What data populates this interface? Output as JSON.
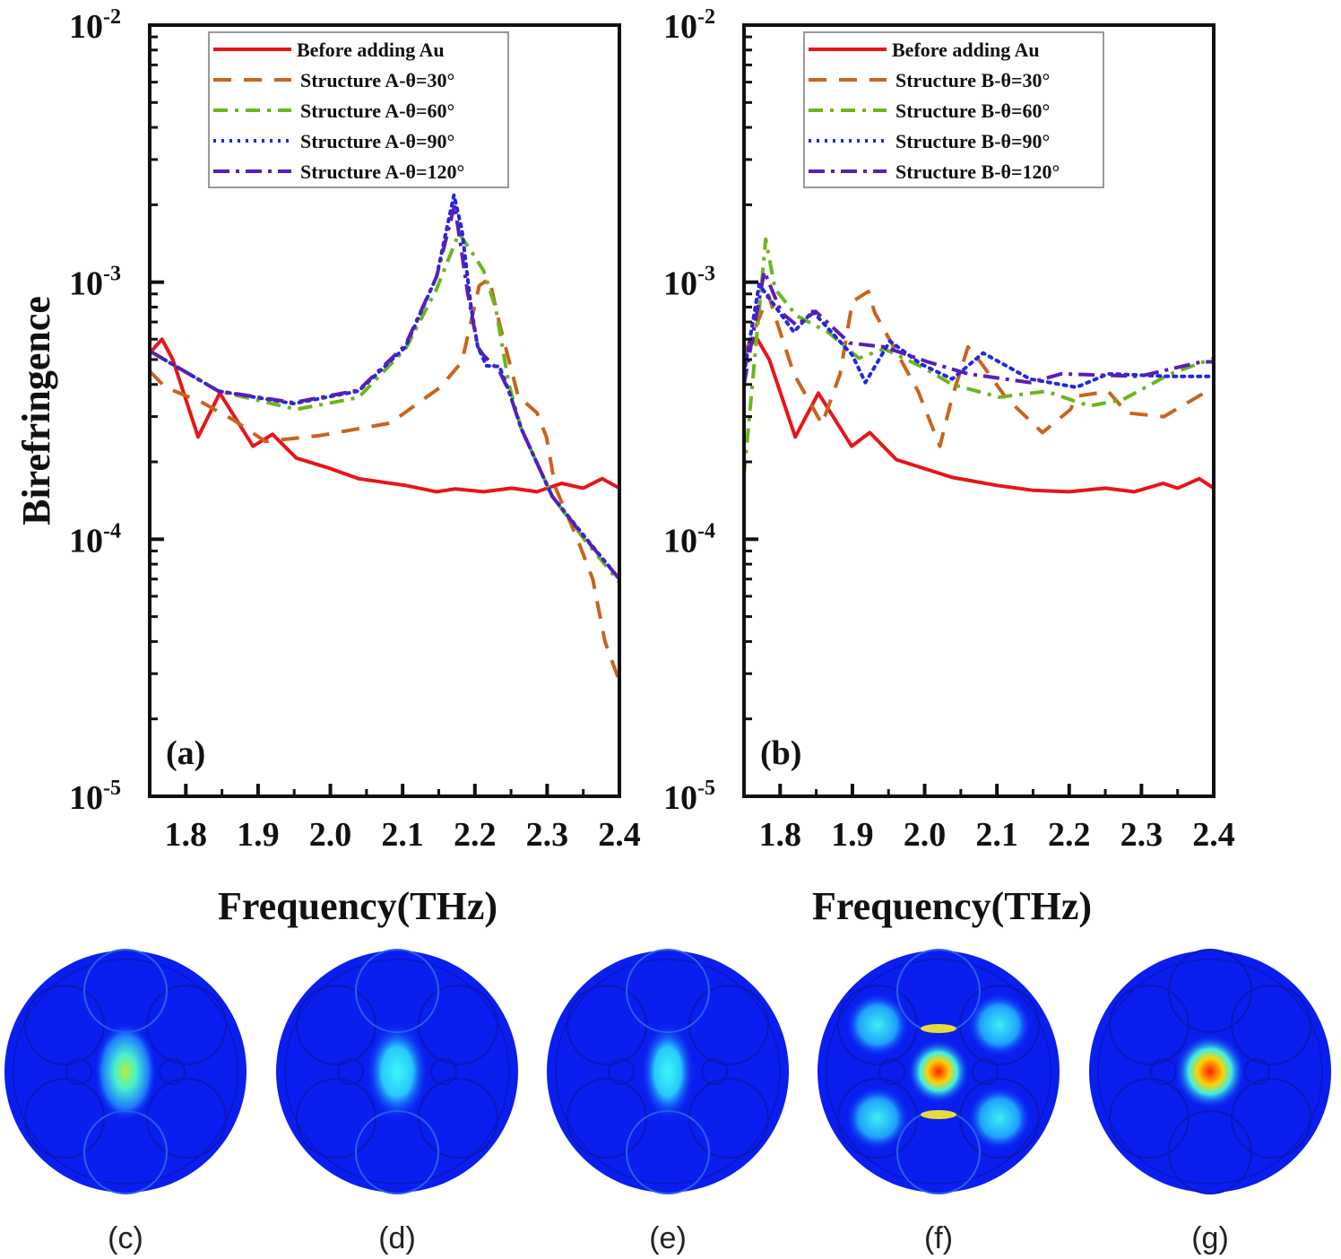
{
  "colors": {
    "before": "#e8141a",
    "s30": "#c8641e",
    "s60": "#6cb61e",
    "s90": "#1e28e6",
    "s120": "#5a1eb4"
  },
  "chart_data": [
    {
      "type": "line",
      "panel_label": "(a)",
      "xlabel": "Frequency(THz)",
      "ylabel": "Birefringence",
      "xlim": [
        1.75,
        2.4
      ],
      "ylim": [
        1e-05,
        0.01
      ],
      "yscale": "log",
      "xticks": [
        "1.8",
        "1.9",
        "2.0",
        "2.1",
        "2.2",
        "2.3",
        "2.4"
      ],
      "yticks": [
        {
          "base": "10",
          "exp": "-2"
        },
        {
          "base": "10",
          "exp": "-3"
        },
        {
          "base": "10",
          "exp": "-4"
        },
        {
          "base": "10",
          "exp": "-5"
        }
      ],
      "legend_position": "top-center",
      "series": [
        {
          "name": "Before adding Au",
          "style": "solid",
          "color_key": "before",
          "x": [
            1.75,
            1.767,
            1.782,
            1.817,
            1.847,
            1.893,
            1.92,
            1.953,
            1.996,
            2.039,
            2.104,
            2.147,
            2.173,
            2.212,
            2.251,
            2.286,
            2.32,
            2.35,
            2.376,
            2.4
          ],
          "y": [
            0.00053,
            0.0006,
            0.0005,
            0.00025,
            0.00037,
            0.00023,
            0.000256,
            0.000207,
            0.00019,
            0.000172,
            0.000162,
            0.000153,
            0.000157,
            0.000153,
            0.000158,
            0.000153,
            0.000165,
            0.000158,
            0.000172,
            0.000158
          ]
        },
        {
          "name": "Structure A-θ=30°",
          "style": "dash",
          "color_key": "s30",
          "x": [
            1.75,
            1.772,
            1.823,
            1.867,
            1.91,
            1.985,
            2.083,
            2.152,
            2.182,
            2.206,
            2.22,
            2.234,
            2.26,
            2.286,
            2.299,
            2.311,
            2.342,
            2.363,
            2.38,
            2.4
          ],
          "y": [
            0.00045,
            0.00039,
            0.00034,
            0.00029,
            0.00024,
            0.000253,
            0.000283,
            0.00039,
            0.00049,
            0.00097,
            0.00103,
            0.00069,
            0.00036,
            0.00031,
            0.00025,
            0.00016,
            0.0001,
            7e-05,
            4e-05,
            2.8e-05
          ]
        },
        {
          "name": "Structure A-θ=60°",
          "style": "dashdot",
          "color_key": "s60",
          "x": [
            1.75,
            1.845,
            1.953,
            2.039,
            2.104,
            2.147,
            2.178,
            2.195,
            2.212,
            2.229,
            2.247,
            2.264,
            2.307,
            2.35,
            2.4
          ],
          "y": [
            0.00054,
            0.000377,
            0.00032,
            0.000356,
            0.00055,
            0.00094,
            0.00155,
            0.00132,
            0.00111,
            0.00079,
            0.0004,
            0.00027,
            0.000147,
            0.000101,
            6.8e-05
          ]
        },
        {
          "name": "Structure A-θ=90°",
          "style": "dot",
          "color_key": "s90",
          "x": [
            1.75,
            1.845,
            1.949,
            2.039,
            2.104,
            2.147,
            2.171,
            2.182,
            2.195,
            2.204,
            2.216,
            2.234,
            2.247,
            2.264,
            2.307,
            2.35,
            2.4
          ],
          "y": [
            0.00054,
            0.000377,
            0.000337,
            0.000377,
            0.00056,
            0.00105,
            0.00218,
            0.0016,
            0.00079,
            0.00056,
            0.000473,
            0.00047,
            0.000377,
            0.00027,
            0.000147,
            0.000104,
            7e-05
          ]
        },
        {
          "name": "Structure A-θ=120°",
          "style": "dashdotlong",
          "color_key": "s120",
          "x": [
            1.75,
            1.845,
            1.949,
            2.039,
            2.104,
            2.147,
            2.172,
            2.19,
            2.204,
            2.212,
            2.234,
            2.247,
            2.264,
            2.307,
            2.35,
            2.4
          ],
          "y": [
            0.00054,
            0.000377,
            0.00034,
            0.00038,
            0.00057,
            0.00105,
            0.002,
            0.00091,
            0.00056,
            0.00052,
            0.00045,
            0.000377,
            0.00027,
            0.000147,
            0.000103,
            7e-05
          ]
        }
      ]
    },
    {
      "type": "line",
      "panel_label": "(b)",
      "xlabel": "Frequency(THz)",
      "ylabel": "",
      "xlim": [
        1.75,
        2.4
      ],
      "ylim": [
        1e-05,
        0.01
      ],
      "yscale": "log",
      "xticks": [
        "1.8",
        "1.9",
        "2.0",
        "2.1",
        "2.2",
        "2.3",
        "2.4"
      ],
      "yticks": [
        {
          "base": "10",
          "exp": "-2"
        },
        {
          "base": "10",
          "exp": "-3"
        },
        {
          "base": "10",
          "exp": "-4"
        },
        {
          "base": "10",
          "exp": "-5"
        }
      ],
      "legend_position": "top-center",
      "series": [
        {
          "name": "Before adding Au",
          "style": "solid",
          "color_key": "before",
          "x": [
            1.75,
            1.767,
            1.785,
            1.821,
            1.853,
            1.899,
            1.924,
            1.961,
            2.038,
            2.1,
            2.15,
            2.2,
            2.25,
            2.29,
            2.33,
            2.35,
            2.38,
            2.4
          ],
          "y": [
            0.00052,
            0.00061,
            0.0005,
            0.00025,
            0.00037,
            0.00023,
            0.00026,
            0.000204,
            0.000174,
            0.000162,
            0.000155,
            0.000153,
            0.000158,
            0.000153,
            0.000165,
            0.000158,
            0.000172,
            0.000158
          ]
        },
        {
          "name": "Structure B-θ=30°",
          "style": "dash",
          "color_key": "s30",
          "x": [
            1.75,
            1.784,
            1.797,
            1.819,
            1.858,
            1.883,
            1.9,
            1.922,
            1.931,
            1.991,
            2.021,
            2.038,
            2.06,
            2.077,
            2.112,
            2.163,
            2.202,
            2.21,
            2.254,
            2.28,
            2.331,
            2.4
          ],
          "y": [
            0.00052,
            0.00089,
            0.00068,
            0.00044,
            0.00028,
            0.00044,
            0.00084,
            0.00092,
            0.00076,
            0.000376,
            0.00023,
            0.000357,
            0.00056,
            0.00049,
            0.000357,
            0.00026,
            0.00032,
            0.00036,
            0.000376,
            0.00031,
            0.0003,
            0.00039
          ]
        },
        {
          "name": "Structure B-θ=60°",
          "style": "dashdot",
          "color_key": "s60",
          "x": [
            1.75,
            1.78,
            1.793,
            1.823,
            1.866,
            1.909,
            1.944,
            1.995,
            2.038,
            2.103,
            2.168,
            2.228,
            2.275,
            2.34,
            2.4
          ],
          "y": [
            0.000178,
            0.00147,
            0.00094,
            0.00074,
            0.00064,
            0.000506,
            0.00055,
            0.00047,
            0.0004,
            0.000357,
            0.000376,
            0.00033,
            0.00035,
            0.00044,
            0.000506
          ]
        },
        {
          "name": "Structure B-θ=90°",
          "style": "dot",
          "color_key": "s90",
          "x": [
            1.75,
            1.771,
            1.819,
            1.845,
            1.9,
            1.918,
            1.952,
            1.995,
            2.038,
            2.081,
            2.146,
            2.21,
            2.254,
            2.34,
            2.4
          ],
          "y": [
            0.00044,
            0.00098,
            0.00064,
            0.00077,
            0.00052,
            0.000407,
            0.00059,
            0.00048,
            0.00042,
            0.00053,
            0.00042,
            0.00039,
            0.00044,
            0.00043,
            0.00043
          ]
        },
        {
          "name": "Structure B-θ=120°",
          "style": "dashdotlong",
          "color_key": "s120",
          "x": [
            1.75,
            1.778,
            1.802,
            1.823,
            1.849,
            1.896,
            1.944,
            2.004,
            2.06,
            2.146,
            2.189,
            2.297,
            2.383,
            2.4
          ],
          "y": [
            0.0004,
            0.0011,
            0.00076,
            0.00068,
            0.00077,
            0.00058,
            0.00056,
            0.00049,
            0.00044,
            0.000407,
            0.00044,
            0.00043,
            0.00049,
            0.00049
          ]
        }
      ]
    }
  ],
  "field_maps": [
    {
      "label": "(c)",
      "mode": "yellow-green core"
    },
    {
      "label": "(d)",
      "mode": "cyan core"
    },
    {
      "label": "(e)",
      "mode": "cyan vertical core"
    },
    {
      "label": "(f)",
      "mode": "red core with cyan side lobes"
    },
    {
      "label": "(g)",
      "mode": "red core"
    }
  ]
}
